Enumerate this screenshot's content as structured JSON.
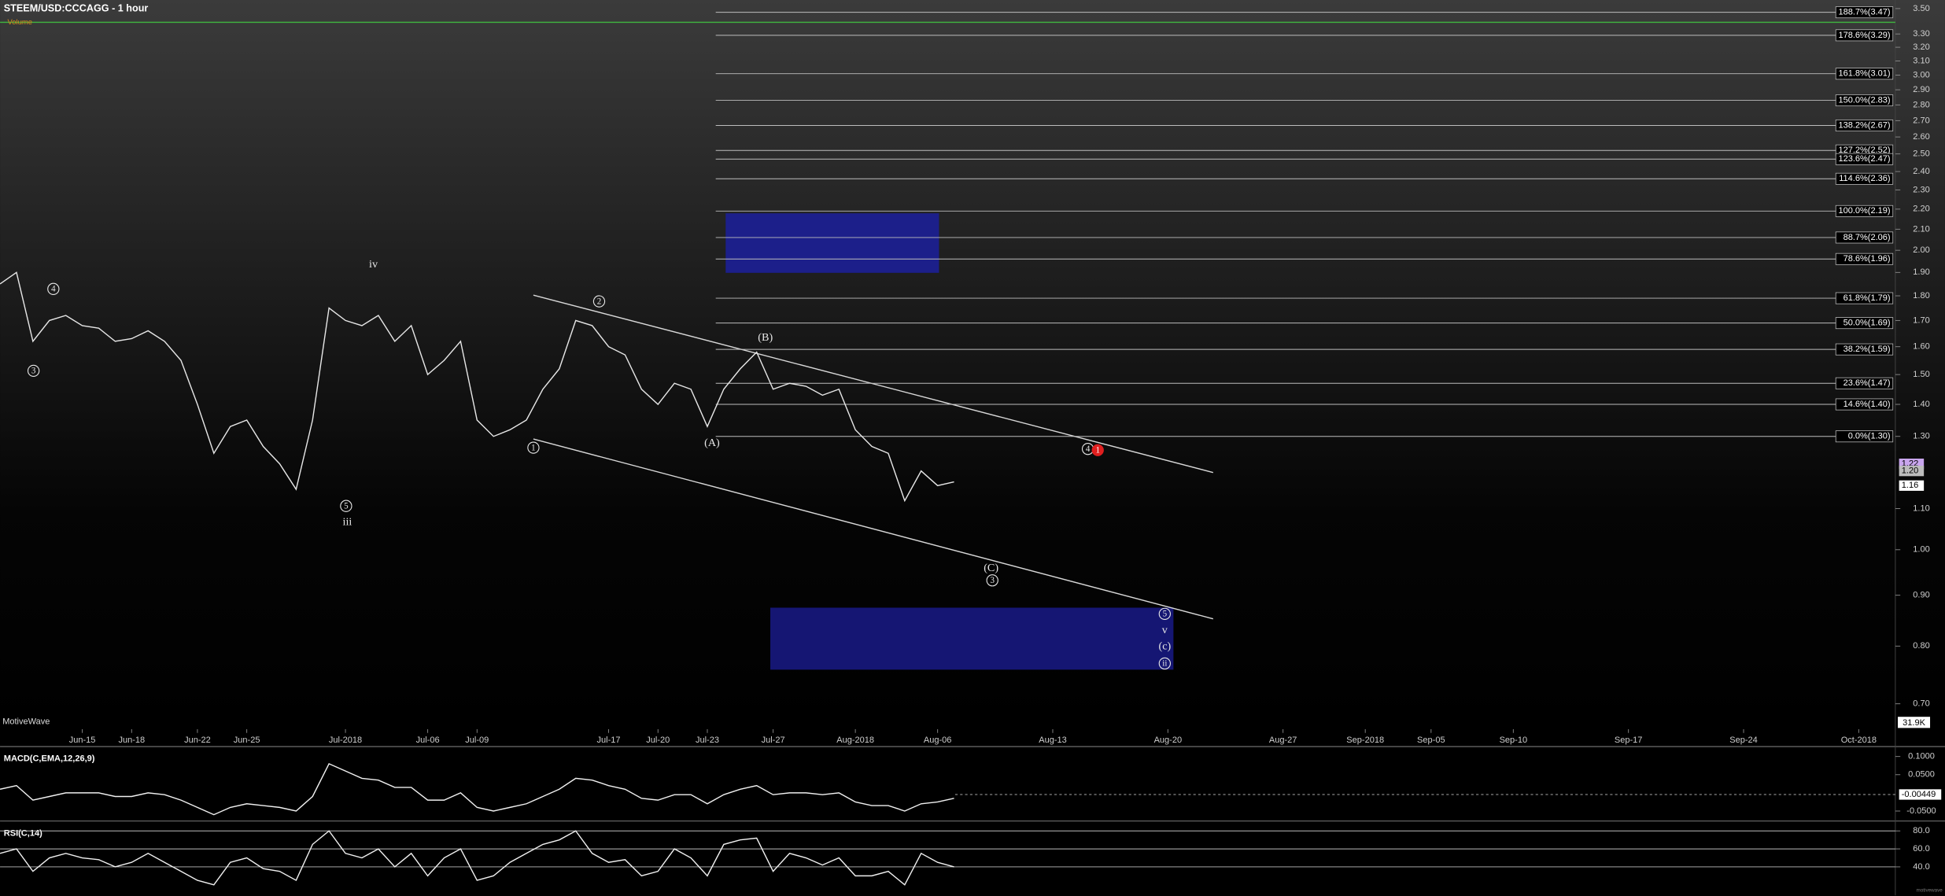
{
  "chart_data": [
    {
      "type": "line",
      "title": "STEEM/USD:CCCAGG - 1 hour",
      "volume_title": "Volume",
      "brand": "MotiveWave",
      "watermark": "motivewave",
      "volume_label": "31.9K",
      "log_scale": true,
      "grid": false,
      "color": "#e6e6e6",
      "xlim": [
        "2018-06-10",
        "2018-10-03"
      ],
      "xticks": [
        {
          "value": "2018-06-15",
          "label": "Jun-15"
        },
        {
          "value": "2018-06-18",
          "label": "Jun-18"
        },
        {
          "value": "2018-06-22",
          "label": "Jun-22"
        },
        {
          "value": "2018-06-25",
          "label": "Jun-25"
        },
        {
          "value": "2018-07-01",
          "label": "Jul-2018"
        },
        {
          "value": "2018-07-06",
          "label": "Jul-06"
        },
        {
          "value": "2018-07-09",
          "label": "Jul-09"
        },
        {
          "value": "2018-07-17",
          "label": "Jul-17"
        },
        {
          "value": "2018-07-20",
          "label": "Jul-20"
        },
        {
          "value": "2018-07-23",
          "label": "Jul-23"
        },
        {
          "value": "2018-07-27",
          "label": "Jul-27"
        },
        {
          "value": "2018-08-01",
          "label": "Aug-2018"
        },
        {
          "value": "2018-08-06",
          "label": "Aug-06"
        },
        {
          "value": "2018-08-13",
          "label": "Aug-13"
        },
        {
          "value": "2018-08-20",
          "label": "Aug-20"
        },
        {
          "value": "2018-08-27",
          "label": "Aug-27"
        },
        {
          "value": "2018-09-01",
          "label": "Sep-2018"
        },
        {
          "value": "2018-09-05",
          "label": "Sep-05"
        },
        {
          "value": "2018-09-10",
          "label": "Sep-10"
        },
        {
          "value": "2018-09-17",
          "label": "Sep-17"
        },
        {
          "value": "2018-09-24",
          "label": "Sep-24"
        },
        {
          "value": "2018-10-01",
          "label": "Oct-2018"
        }
      ],
      "ylim": [
        0.66,
        3.57
      ],
      "yticks": [
        {
          "value": 3.5,
          "label": "3.50"
        },
        {
          "value": 3.3,
          "label": "3.30"
        },
        {
          "value": 3.2,
          "label": "3.20"
        },
        {
          "value": 3.1,
          "label": "3.10"
        },
        {
          "value": 3.0,
          "label": "3.00"
        },
        {
          "value": 2.9,
          "label": "2.90"
        },
        {
          "value": 2.8,
          "label": "2.80"
        },
        {
          "value": 2.7,
          "label": "2.70"
        },
        {
          "value": 2.6,
          "label": "2.60"
        },
        {
          "value": 2.5,
          "label": "2.50"
        },
        {
          "value": 2.4,
          "label": "2.40"
        },
        {
          "value": 2.3,
          "label": "2.30"
        },
        {
          "value": 2.2,
          "label": "2.20"
        },
        {
          "value": 2.1,
          "label": "2.10"
        },
        {
          "value": 2.0,
          "label": "2.00"
        },
        {
          "value": 1.9,
          "label": "1.90"
        },
        {
          "value": 1.8,
          "label": "1.80"
        },
        {
          "value": 1.7,
          "label": "1.70"
        },
        {
          "value": 1.6,
          "label": "1.60"
        },
        {
          "value": 1.5,
          "label": "1.50"
        },
        {
          "value": 1.4,
          "label": "1.40"
        },
        {
          "value": 1.3,
          "label": "1.30"
        },
        {
          "value": 1.1,
          "label": "1.10"
        },
        {
          "value": 1.0,
          "label": "1.00"
        },
        {
          "value": 0.9,
          "label": "0.90"
        },
        {
          "value": 0.8,
          "label": "0.80"
        },
        {
          "value": 0.7,
          "label": "0.70"
        }
      ],
      "x": [
        "2018-06-10",
        "2018-06-11",
        "2018-06-12",
        "2018-06-13",
        "2018-06-14",
        "2018-06-15",
        "2018-06-16",
        "2018-06-17",
        "2018-06-18",
        "2018-06-19",
        "2018-06-20",
        "2018-06-21",
        "2018-06-22",
        "2018-06-23",
        "2018-06-24",
        "2018-06-25",
        "2018-06-26",
        "2018-06-27",
        "2018-06-28",
        "2018-06-29",
        "2018-06-30",
        "2018-07-01",
        "2018-07-02",
        "2018-07-03",
        "2018-07-04",
        "2018-07-05",
        "2018-07-06",
        "2018-07-07",
        "2018-07-08",
        "2018-07-09",
        "2018-07-10",
        "2018-07-11",
        "2018-07-12",
        "2018-07-13",
        "2018-07-14",
        "2018-07-15",
        "2018-07-16",
        "2018-07-17",
        "2018-07-18",
        "2018-07-19",
        "2018-07-20",
        "2018-07-21",
        "2018-07-22",
        "2018-07-23",
        "2018-07-24",
        "2018-07-25",
        "2018-07-26",
        "2018-07-27",
        "2018-07-28",
        "2018-07-29",
        "2018-07-30",
        "2018-07-31",
        "2018-08-01",
        "2018-08-02",
        "2018-08-03",
        "2018-08-04",
        "2018-08-05",
        "2018-08-06",
        "2018-08-07"
      ],
      "values": [
        1.85,
        1.9,
        1.62,
        1.7,
        1.72,
        1.68,
        1.67,
        1.62,
        1.63,
        1.66,
        1.62,
        1.55,
        1.4,
        1.25,
        1.33,
        1.35,
        1.27,
        1.22,
        1.15,
        1.35,
        1.75,
        1.7,
        1.68,
        1.72,
        1.62,
        1.68,
        1.5,
        1.55,
        1.62,
        1.35,
        1.3,
        1.32,
        1.35,
        1.45,
        1.52,
        1.7,
        1.68,
        1.6,
        1.57,
        1.45,
        1.4,
        1.47,
        1.45,
        1.33,
        1.45,
        1.52,
        1.58,
        1.45,
        1.47,
        1.46,
        1.43,
        1.45,
        1.32,
        1.27,
        1.25,
        1.12,
        1.2,
        1.16,
        1.17
      ],
      "fib_levels": [
        {
          "label": "188.7%(3.47)",
          "value": 3.47
        },
        {
          "label": "178.6%(3.29)",
          "value": 3.29
        },
        {
          "label": "161.8%(3.01)",
          "value": 3.01
        },
        {
          "label": "150.0%(2.83)",
          "value": 2.83
        },
        {
          "label": "138.2%(2.67)",
          "value": 2.67
        },
        {
          "label": "127.2%(2.52)",
          "value": 2.52
        },
        {
          "label": "123.6%(2.47)",
          "value": 2.47
        },
        {
          "label": "114.6%(2.36)",
          "value": 2.36
        },
        {
          "label": "100.0%(2.19)",
          "value": 2.19
        },
        {
          "label": "88.7%(2.06)",
          "value": 2.06
        },
        {
          "label": "78.6%(1.96)",
          "value": 1.96
        },
        {
          "label": "61.8%(1.79)",
          "value": 1.79
        },
        {
          "label": "50.0%(1.69)",
          "value": 1.69
        },
        {
          "label": "38.2%(1.59)",
          "value": 1.59
        },
        {
          "label": "23.6%(1.47)",
          "value": 1.47
        },
        {
          "label": "14.6%(1.40)",
          "value": 1.4
        },
        {
          "label": "0.0%(1.30)",
          "value": 1.3
        }
      ],
      "markers": [
        {
          "value": 1.22,
          "label": "1.22",
          "color": "#c9a6ee"
        },
        {
          "value": 1.2,
          "label": "1.20",
          "color": "#bdbdbd"
        },
        {
          "value": 1.16,
          "label": "1.16",
          "color": "#ffffff"
        }
      ],
      "annotations": [
        {
          "text": "iv"
        },
        {
          "text": "4",
          "circled": true
        },
        {
          "text": "3",
          "circled": true
        },
        {
          "text": "5",
          "circled": true
        },
        {
          "text": "iii"
        },
        {
          "text": "2",
          "circled": true
        },
        {
          "text": "1",
          "circled": true
        },
        {
          "text": "(B)"
        },
        {
          "text": "(A)"
        },
        {
          "text": "(C)"
        },
        {
          "text": "3",
          "circled": true
        },
        {
          "text": "4",
          "circled": true
        },
        {
          "text": "1",
          "circled": true,
          "color": "#e01f1f"
        },
        {
          "text": "5",
          "circled": true
        },
        {
          "text": "v"
        },
        {
          "text": "(c)"
        },
        {
          "text": "ii",
          "circled": true
        }
      ]
    },
    {
      "type": "line",
      "title": "MACD(C,EMA,12,26,9)",
      "log_scale": false,
      "grid": false,
      "color": "#f0f0f0",
      "xlim": [
        "2018-06-10",
        "2018-10-03"
      ],
      "ylim": [
        -0.0705,
        0.1239
      ],
      "yticks": [
        {
          "value": 0.1,
          "label": "0.1000"
        },
        {
          "value": 0.05,
          "label": "0.0500"
        },
        {
          "value": -0.05,
          "label": "-0.0500"
        }
      ],
      "x": [
        "2018-06-10",
        "2018-06-11",
        "2018-06-12",
        "2018-06-13",
        "2018-06-14",
        "2018-06-15",
        "2018-06-16",
        "2018-06-17",
        "2018-06-18",
        "2018-06-19",
        "2018-06-20",
        "2018-06-21",
        "2018-06-22",
        "2018-06-23",
        "2018-06-24",
        "2018-06-25",
        "2018-06-26",
        "2018-06-27",
        "2018-06-28",
        "2018-06-29",
        "2018-06-30",
        "2018-07-01",
        "2018-07-02",
        "2018-07-03",
        "2018-07-04",
        "2018-07-05",
        "2018-07-06",
        "2018-07-07",
        "2018-07-08",
        "2018-07-09",
        "2018-07-10",
        "2018-07-11",
        "2018-07-12",
        "2018-07-13",
        "2018-07-14",
        "2018-07-15",
        "2018-07-16",
        "2018-07-17",
        "2018-07-18",
        "2018-07-19",
        "2018-07-20",
        "2018-07-21",
        "2018-07-22",
        "2018-07-23",
        "2018-07-24",
        "2018-07-25",
        "2018-07-26",
        "2018-07-27",
        "2018-07-28",
        "2018-07-29",
        "2018-07-30",
        "2018-07-31",
        "2018-08-01",
        "2018-08-02",
        "2018-08-03",
        "2018-08-04",
        "2018-08-05",
        "2018-08-06",
        "2018-08-07"
      ],
      "values": [
        0.01,
        0.02,
        -0.02,
        -0.01,
        0,
        0,
        0,
        -0.01,
        -0.01,
        0,
        -0.005,
        -0.02,
        -0.04,
        -0.06,
        -0.04,
        -0.03,
        -0.035,
        -0.04,
        -0.05,
        -0.01,
        0.08,
        0.06,
        0.04,
        0.035,
        0.015,
        0.015,
        -0.02,
        -0.02,
        0,
        -0.04,
        -0.05,
        -0.04,
        -0.03,
        -0.01,
        0.01,
        0.04,
        0.035,
        0.02,
        0.01,
        -0.015,
        -0.02,
        -0.005,
        -0.005,
        -0.03,
        -0.005,
        0.01,
        0.02,
        -0.005,
        0,
        0,
        -0.005,
        0,
        -0.025,
        -0.035,
        -0.035,
        -0.05,
        -0.03,
        -0.025,
        -0.015
      ],
      "markers": [
        {
          "value": -0.00449,
          "label": "-0.00449",
          "color": "#ffffff"
        }
      ]
    },
    {
      "type": "line",
      "title": "RSI(C,14)",
      "log_scale": false,
      "grid": true,
      "color": "#f0f0f0",
      "xlim": [
        "2018-06-10",
        "2018-10-03"
      ],
      "ylim": [
        11,
        88.3
      ],
      "yticks": [
        {
          "value": 80,
          "label": "80.0"
        },
        {
          "value": 60,
          "label": "60.0"
        },
        {
          "value": 40,
          "label": "40.0"
        }
      ],
      "x": [
        "2018-06-10",
        "2018-06-11",
        "2018-06-12",
        "2018-06-13",
        "2018-06-14",
        "2018-06-15",
        "2018-06-16",
        "2018-06-17",
        "2018-06-18",
        "2018-06-19",
        "2018-06-20",
        "2018-06-21",
        "2018-06-22",
        "2018-06-23",
        "2018-06-24",
        "2018-06-25",
        "2018-06-26",
        "2018-06-27",
        "2018-06-28",
        "2018-06-29",
        "2018-06-30",
        "2018-07-01",
        "2018-07-02",
        "2018-07-03",
        "2018-07-04",
        "2018-07-05",
        "2018-07-06",
        "2018-07-07",
        "2018-07-08",
        "2018-07-09",
        "2018-07-10",
        "2018-07-11",
        "2018-07-12",
        "2018-07-13",
        "2018-07-14",
        "2018-07-15",
        "2018-07-16",
        "2018-07-17",
        "2018-07-18",
        "2018-07-19",
        "2018-07-20",
        "2018-07-21",
        "2018-07-22",
        "2018-07-23",
        "2018-07-24",
        "2018-07-25",
        "2018-07-26",
        "2018-07-27",
        "2018-07-28",
        "2018-07-29",
        "2018-07-30",
        "2018-07-31",
        "2018-08-01",
        "2018-08-02",
        "2018-08-03",
        "2018-08-04",
        "2018-08-05",
        "2018-08-06",
        "2018-08-07"
      ],
      "values": [
        55,
        60,
        35,
        50,
        55,
        50,
        48,
        40,
        45,
        55,
        45,
        35,
        25,
        20,
        45,
        50,
        38,
        35,
        25,
        65,
        80,
        55,
        50,
        60,
        40,
        55,
        30,
        50,
        60,
        25,
        30,
        45,
        55,
        65,
        70,
        80,
        55,
        45,
        48,
        30,
        35,
        60,
        50,
        30,
        65,
        70,
        72,
        35,
        55,
        50,
        42,
        50,
        30,
        30,
        35,
        20,
        55,
        45,
        40
      ]
    }
  ]
}
